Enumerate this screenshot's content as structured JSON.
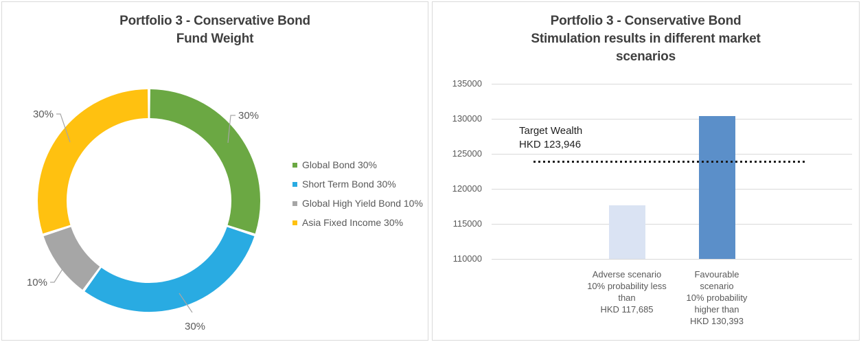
{
  "left_panel": {
    "title_lines": [
      "Portfolio 3 - Conservative Bond",
      "Fund Weight"
    ]
  },
  "right_panel": {
    "title_lines": [
      "Portfolio 3 - Conservative Bond",
      "Stimulation results in different market",
      "scenarios"
    ]
  },
  "colors": {
    "title_text": "#3F3F3F",
    "axis_text": "#595959",
    "gridline": "#D9D9D9",
    "panel_border": "#D9D9D9",
    "leader_line": "#A6A6A6",
    "target_line": "#1A1A1A"
  },
  "chart_data": [
    {
      "type": "pie",
      "subtype": "donut",
      "title": "Portfolio 3 - Conservative Bond Fund Weight",
      "categories": [
        "Global Bond",
        "Short Term Bond",
        "Global High Yield Bond",
        "Asia Fixed Income"
      ],
      "values": [
        30,
        30,
        10,
        30
      ],
      "unit": "%",
      "colors": [
        "#6BA843",
        "#29ABE2",
        "#A6A6A6",
        "#FFC110"
      ],
      "slice_labels": [
        "30%",
        "30%",
        "10%",
        "30%"
      ],
      "legend_labels": [
        "Global Bond 30%",
        "Short Term Bond 30%",
        "Global High Yield Bond 10%",
        "Asia Fixed Income 30%"
      ],
      "legend_position": "right",
      "start_angle": "top",
      "direction": "clockwise"
    },
    {
      "type": "bar",
      "title": "Portfolio 3 - Conservative Bond Stimulation results in different market scenarios",
      "categories": [
        "Adverse scenario 10% probability less than HKD 117,685",
        "Favourable scenario 10% probability higher than HKD 130,393"
      ],
      "category_label_lines": [
        [
          "Adverse scenario",
          "10% probability less",
          "than",
          "HKD 117,685"
        ],
        [
          "Favourable",
          "scenario",
          "10% probability",
          "higher than",
          "HKD 130,393"
        ]
      ],
      "values": [
        117685,
        130393
      ],
      "bar_colors": [
        "#DAE3F3",
        "#5B8FC9"
      ],
      "ylim": [
        110000,
        135000
      ],
      "yticks": [
        135000,
        130000,
        125000,
        120000,
        115000,
        110000
      ],
      "grid": true,
      "reference_line": {
        "value": 123946,
        "label_lines": [
          "Target Wealth",
          "HKD 123,946"
        ],
        "style": "dotted"
      }
    }
  ]
}
